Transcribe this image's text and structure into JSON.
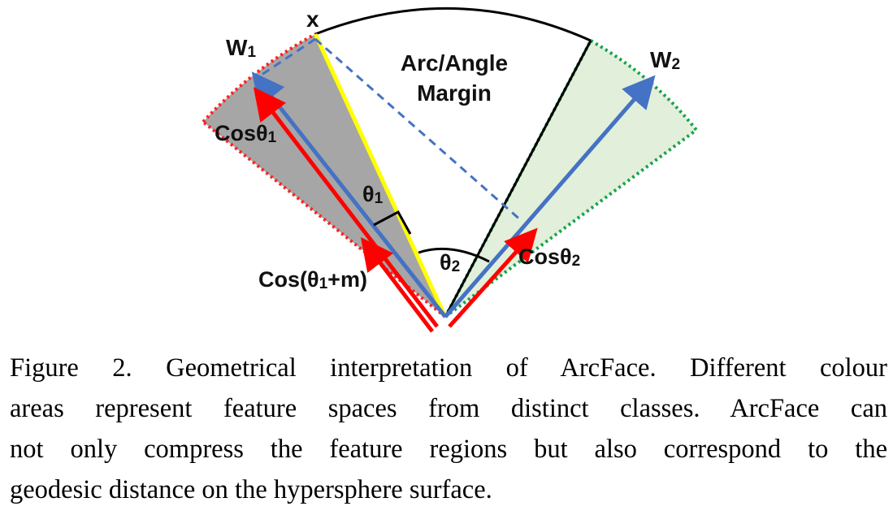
{
  "diagram": {
    "labels": {
      "x": "x",
      "w1": "W",
      "w1_sub": "1",
      "w2": "W",
      "w2_sub": "2",
      "margin_line1": "Arc/Angle",
      "margin_line2": "Margin",
      "cos_theta1": "Cosθ",
      "cos_theta1_sub": "1",
      "theta1": "θ",
      "theta1_sub": "1",
      "theta2": "θ",
      "theta2_sub": "2",
      "cos_theta2": "Cosθ",
      "cos_theta2_sub": "2",
      "cos_theta1_m_pre": "Cos(θ",
      "cos_theta1_m_sub": "1",
      "cos_theta1_m_post": "+m)"
    },
    "colors": {
      "class1_fill": "#a6a6a6",
      "class2_fill": "#e2efda",
      "boundary1": "#ff2020",
      "boundary2": "#16a34a",
      "arrow_blue": "#4472c4",
      "arrow_red": "#ff0000",
      "feature_yellow": "#ffff00",
      "arc": "#000000"
    }
  },
  "caption": {
    "line1": "Figure 2. Geometrical interpretation of ArcFace. Different colour",
    "line2": "areas represent feature spaces from distinct classes. ArcFace can",
    "line3": "not only compress the feature regions but also correspond to the",
    "line4": "geodesic distance on the hypersphere surface."
  }
}
